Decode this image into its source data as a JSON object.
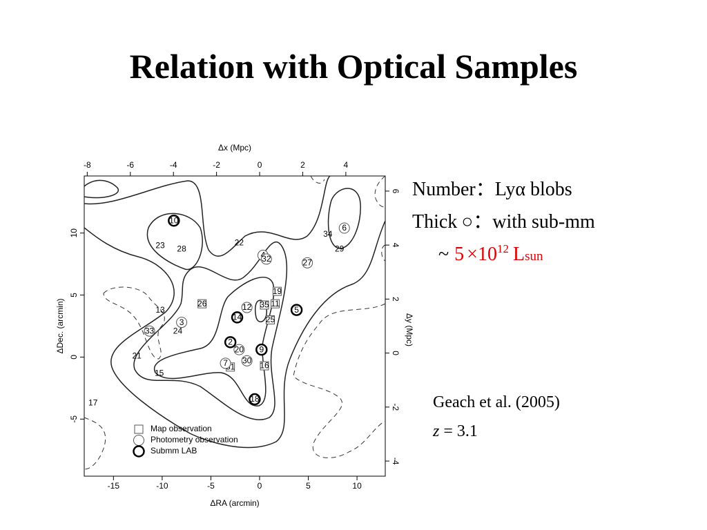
{
  "title": "Relation with Optical Samples",
  "chart_data": {
    "type": "scatter",
    "xlabel": "ΔRA (arcmin)",
    "ylabel": "ΔDec. (arcmin)",
    "x2label": "Δx (Mpc)",
    "y2label": "Δy (Mpc)",
    "xlim": [
      -18,
      12.9
    ],
    "ylim": [
      -9.6,
      14.6
    ],
    "xticks": [
      -15,
      -10,
      -5,
      0,
      5,
      10
    ],
    "yticks": [
      -5,
      0,
      5,
      10
    ],
    "x2lim": [
      -8.14,
      5.83
    ],
    "y2lim": [
      -4.56,
      6.56
    ],
    "x2ticks": [
      -8,
      -6,
      -4,
      -2,
      0,
      2,
      4
    ],
    "y2ticks": [
      -4,
      -2,
      0,
      2,
      4,
      6
    ],
    "series": [
      {
        "name": "Map observation",
        "marker": "square",
        "x": [
          1.8,
          0.5,
          1.6,
          1.1,
          -5.9,
          -3.0,
          0.5
        ],
        "y": [
          5.3,
          4.2,
          4.3,
          3.0,
          4.3,
          -0.8,
          -0.7
        ],
        "labels": [
          "19",
          "35",
          "11",
          "25",
          "26",
          "31",
          "16"
        ]
      },
      {
        "name": "Photometry observation",
        "marker": "circle",
        "x": [
          0.35,
          0.7,
          4.9,
          8.7,
          -1.3,
          -8.0,
          -11.3,
          -2.1,
          -3.5,
          -1.3
        ],
        "y": [
          8.2,
          7.9,
          7.6,
          10.4,
          4.0,
          2.8,
          2.1,
          0.6,
          -0.5,
          -0.3
        ],
        "labels": [
          "4",
          "32",
          "27",
          "6",
          "12",
          "3",
          "33",
          "20",
          "7",
          "30"
        ]
      },
      {
        "name": "Submm LAB",
        "marker": "thick",
        "x": [
          -8.8,
          -2.3,
          3.8,
          -3.0,
          0.2,
          -0.5
        ],
        "y": [
          11.0,
          3.2,
          3.8,
          1.2,
          0.6,
          -3.4
        ],
        "labels": [
          "10",
          "14",
          "5",
          "2",
          "9",
          "18"
        ]
      },
      {
        "marker": "none",
        "x": [
          -10.2,
          -8.0,
          -2.1,
          7.0,
          8.2,
          -10.2,
          -8.4,
          -12.6,
          -10.3,
          -17.1
        ],
        "y": [
          9.0,
          8.7,
          9.2,
          9.9,
          8.7,
          3.8,
          2.1,
          0.1,
          -1.3,
          -3.7
        ],
        "labels": [
          "23",
          "28",
          "22",
          "34",
          "29",
          "13",
          "24",
          "21",
          "15",
          "17"
        ]
      }
    ]
  },
  "notes": {
    "line1": {
      "term": "Number",
      "sep": "：",
      "text": "Lyα blobs"
    },
    "line2": {
      "term": "Thick",
      "symbol": "○",
      "sep": "：",
      "text": "with sub-mm"
    },
    "line3": {
      "tilde": "~",
      "coef": "5",
      "times": "×",
      "base": "10",
      "exp": "12",
      "unit": "L",
      "sub": "sun"
    },
    "ref": "Geach et al. (2005)",
    "z_var": "z",
    "z_eq": "= 3.1"
  }
}
